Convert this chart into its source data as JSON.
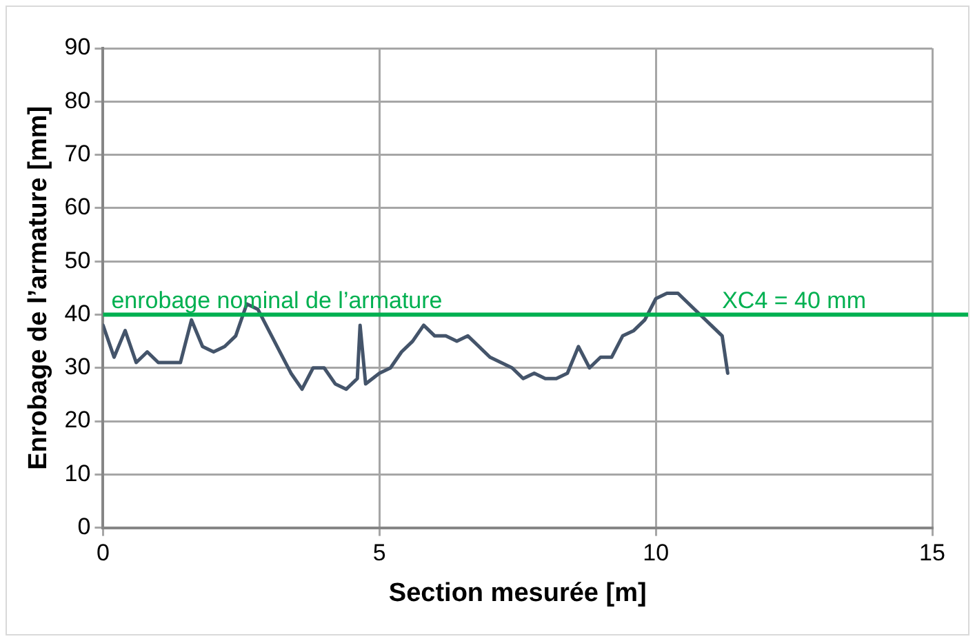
{
  "chart_data": {
    "type": "line",
    "xlabel": "Section mesurée [m]",
    "ylabel": "Enrobage de l’armature [mm]",
    "xlim": [
      0,
      15
    ],
    "xticks": [
      0,
      5,
      10,
      15
    ],
    "ylim": [
      0,
      90
    ],
    "yticks": [
      0,
      10,
      20,
      30,
      40,
      50,
      60,
      70,
      80,
      90
    ],
    "grid": true,
    "marker": "none",
    "line_style": "solid",
    "series": [
      {
        "color": "#44546a",
        "x": [
          0,
          0.2,
          0.4,
          0.6,
          0.8,
          1.0,
          1.2,
          1.4,
          1.6,
          1.8,
          2.0,
          2.2,
          2.4,
          2.6,
          2.8,
          3.0,
          3.2,
          3.4,
          3.6,
          3.8,
          4.0,
          4.2,
          4.4,
          4.6,
          4.65,
          4.75,
          5.0,
          5.2,
          5.4,
          5.6,
          5.8,
          6.0,
          6.2,
          6.4,
          6.6,
          6.8,
          7.0,
          7.2,
          7.4,
          7.6,
          7.8,
          8.0,
          8.2,
          8.4,
          8.6,
          8.8,
          9.0,
          9.2,
          9.4,
          9.6,
          9.8,
          10.0,
          10.2,
          10.4,
          10.6,
          10.8,
          11.0,
          11.2,
          11.3
        ],
        "values": [
          38,
          32,
          37,
          31,
          33,
          31,
          31,
          31,
          39,
          34,
          33,
          34,
          36,
          42,
          41,
          37,
          33,
          29,
          26,
          30,
          30,
          27,
          26,
          28,
          38,
          27,
          29,
          30,
          33,
          35,
          38,
          36,
          36,
          35,
          36,
          34,
          32,
          31,
          30,
          28,
          29,
          28,
          28,
          29,
          34,
          30,
          32,
          32,
          36,
          37,
          39,
          43,
          44,
          44,
          42,
          40,
          38,
          36,
          29
        ]
      }
    ],
    "ref_lines": [
      {
        "axis": "y",
        "value": 40,
        "label": "enrobage nominal de l’armature",
        "color": "#00b050",
        "line_style": "solid"
      }
    ],
    "annotations": [
      {
        "text": "XC4 = 40 mm",
        "x": 12.5,
        "y": 40
      }
    ]
  }
}
